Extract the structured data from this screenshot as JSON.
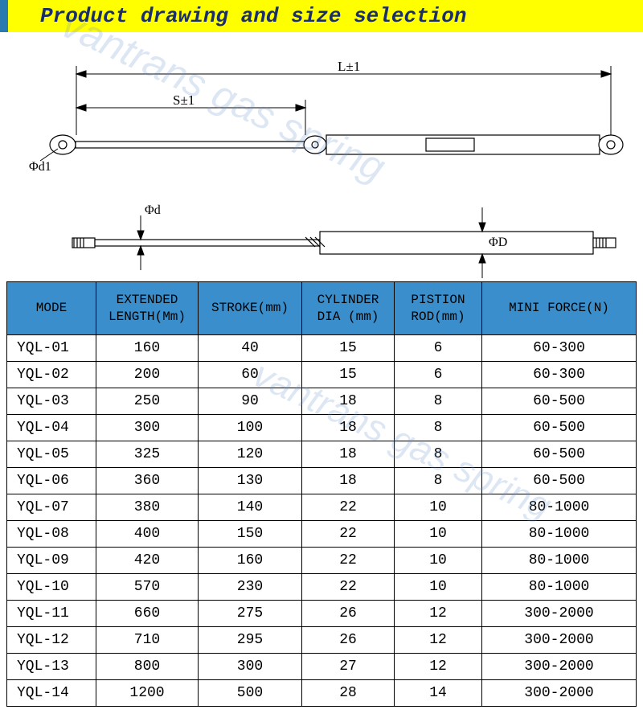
{
  "title": "Product drawing and size selection",
  "watermark": "vantrans gas spring",
  "diagram": {
    "labels": {
      "L": "L±1",
      "S": "S±1",
      "phi_d1": "Φd1",
      "phi_d": "Φd",
      "phi_D": "ΦD"
    },
    "colors": {
      "line": "#000000",
      "bg": "#ffffff"
    }
  },
  "table": {
    "header_bg": "#3a8ecb",
    "columns": [
      "MODE",
      "EXTENDED LENGTH(Mm)",
      "STROKE(mm)",
      "CYLINDER DIA (mm)",
      "PISTION ROD(mm)",
      "MINI  FORCE(N)"
    ],
    "rows": [
      [
        "YQL-01",
        "160",
        "40",
        "15",
        "6",
        "60-300"
      ],
      [
        "YQL-02",
        "200",
        "60",
        "15",
        "6",
        "60-300"
      ],
      [
        "YQL-03",
        "250",
        "90",
        "18",
        "8",
        "60-500"
      ],
      [
        "YQL-04",
        "300",
        "100",
        "18",
        "8",
        "60-500"
      ],
      [
        "YQL-05",
        "325",
        "120",
        "18",
        "8",
        "60-500"
      ],
      [
        "YQL-06",
        "360",
        "130",
        "18",
        "8",
        "60-500"
      ],
      [
        "YQL-07",
        "380",
        "140",
        "22",
        "10",
        "80-1000"
      ],
      [
        "YQL-08",
        "400",
        "150",
        "22",
        "10",
        "80-1000"
      ],
      [
        "YQL-09",
        "420",
        "160",
        "22",
        "10",
        "80-1000"
      ],
      [
        "YQL-10",
        "570",
        "230",
        "22",
        "10",
        "80-1000"
      ],
      [
        "YQL-11",
        "660",
        "275",
        "26",
        "12",
        "300-2000"
      ],
      [
        "YQL-12",
        "710",
        "295",
        "26",
        "12",
        "300-2000"
      ],
      [
        "YQL-13",
        "800",
        "300",
        "27",
        "12",
        "300-2000"
      ],
      [
        "YQL-14",
        "1200",
        "500",
        "28",
        "14",
        "300-2000"
      ]
    ]
  }
}
